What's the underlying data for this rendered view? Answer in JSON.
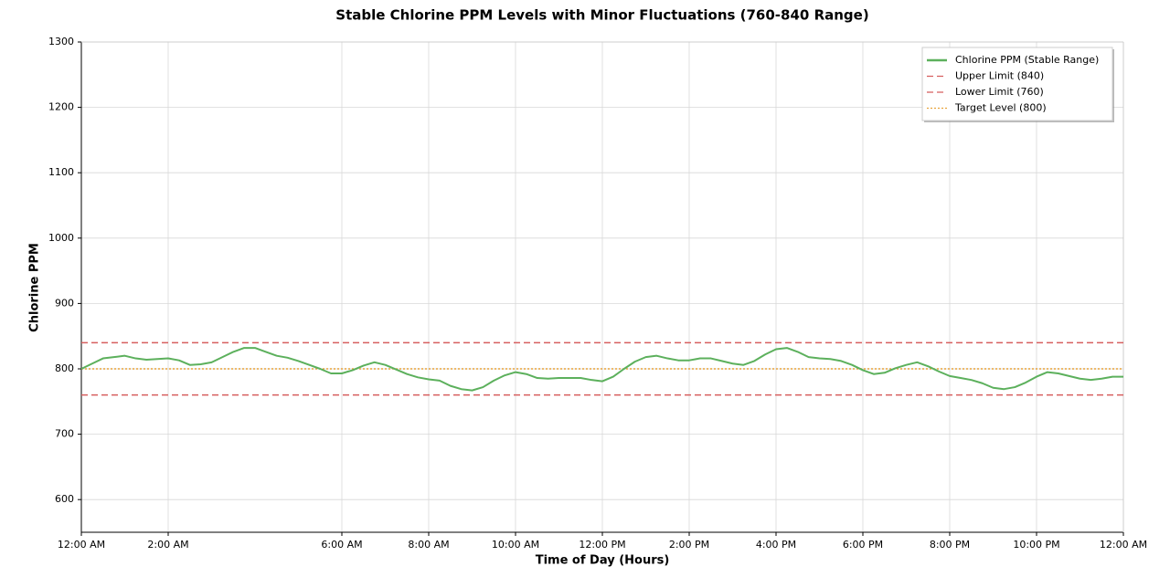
{
  "chart_data": {
    "type": "line",
    "title": "Stable Chlorine PPM Levels with Minor Fluctuations (760-840 Range)",
    "xlabel": "Time of Day (Hours)",
    "ylabel": "Chlorine PPM",
    "x": [
      0,
      0.25,
      0.5,
      0.75,
      1,
      1.25,
      1.5,
      1.75,
      2,
      2.25,
      2.5,
      2.75,
      3,
      3.25,
      3.5,
      3.75,
      4,
      4.25,
      4.5,
      4.75,
      5,
      5.25,
      5.5,
      5.75,
      6,
      6.25,
      6.5,
      6.75,
      7,
      7.25,
      7.5,
      7.75,
      8,
      8.25,
      8.5,
      8.75,
      9,
      9.25,
      9.5,
      9.75,
      10,
      10.25,
      10.5,
      10.75,
      11,
      11.25,
      11.5,
      11.75,
      12,
      12.25,
      12.5,
      12.75,
      13,
      13.25,
      13.5,
      13.75,
      14,
      14.25,
      14.5,
      14.75,
      15,
      15.25,
      15.5,
      15.75,
      16,
      16.25,
      16.5,
      16.75,
      17,
      17.25,
      17.5,
      17.75,
      18,
      18.25,
      18.5,
      18.75,
      19,
      19.25,
      19.5,
      19.75,
      20,
      20.25,
      20.5,
      20.75,
      21,
      21.25,
      21.5,
      21.75,
      22,
      22.25,
      22.5,
      22.75,
      23,
      23.25,
      23.5,
      23.75,
      24
    ],
    "series": [
      {
        "name": "Chlorine PPM (Stable Range)",
        "color": "#5cb05c",
        "values": [
          800,
          808,
          816,
          818,
          820,
          816,
          814,
          815,
          816,
          813,
          806,
          807,
          810,
          818,
          826,
          832,
          832,
          826,
          820,
          817,
          812,
          806,
          800,
          793,
          793,
          798,
          805,
          810,
          806,
          799,
          792,
          787,
          784,
          782,
          774,
          769,
          767,
          772,
          782,
          790,
          795,
          792,
          786,
          785,
          786,
          786,
          786,
          783,
          781,
          788,
          800,
          811,
          818,
          820,
          816,
          813,
          813,
          816,
          816,
          812,
          808,
          806,
          812,
          822,
          830,
          832,
          826,
          818,
          816,
          815,
          812,
          806,
          798,
          792,
          794,
          801,
          806,
          810,
          804,
          796,
          789,
          786,
          783,
          778,
          771,
          769,
          772,
          779,
          788,
          795,
          793,
          789,
          785,
          783,
          785,
          788,
          788
        ]
      }
    ],
    "hlines": [
      {
        "name": "Upper Limit (840)",
        "value": 840,
        "color": "#d65f5f",
        "style": "dashed"
      },
      {
        "name": "Lower Limit (760)",
        "value": 760,
        "color": "#d65f5f",
        "style": "dashed"
      },
      {
        "name": "Target Level (800)",
        "value": 800,
        "color": "#e8a33c",
        "style": "dotted"
      }
    ],
    "xlim": [
      0,
      24
    ],
    "ylim": [
      550,
      1300
    ],
    "xticks": [
      {
        "value": 0,
        "label": "12:00 AM"
      },
      {
        "value": 2,
        "label": "2:00 AM"
      },
      {
        "value": 6,
        "label": "6:00 AM"
      },
      {
        "value": 8,
        "label": "8:00 AM"
      },
      {
        "value": 10,
        "label": "10:00 AM"
      },
      {
        "value": 12,
        "label": "12:00 PM"
      },
      {
        "value": 14,
        "label": "2:00 PM"
      },
      {
        "value": 16,
        "label": "4:00 PM"
      },
      {
        "value": 18,
        "label": "6:00 PM"
      },
      {
        "value": 20,
        "label": "8:00 PM"
      },
      {
        "value": 22,
        "label": "10:00 PM"
      },
      {
        "value": 24,
        "label": "12:00 AM"
      }
    ],
    "yticks": [
      600,
      700,
      800,
      900,
      1000,
      1100,
      1200,
      1300
    ],
    "grid": true,
    "legend": "upper right"
  }
}
